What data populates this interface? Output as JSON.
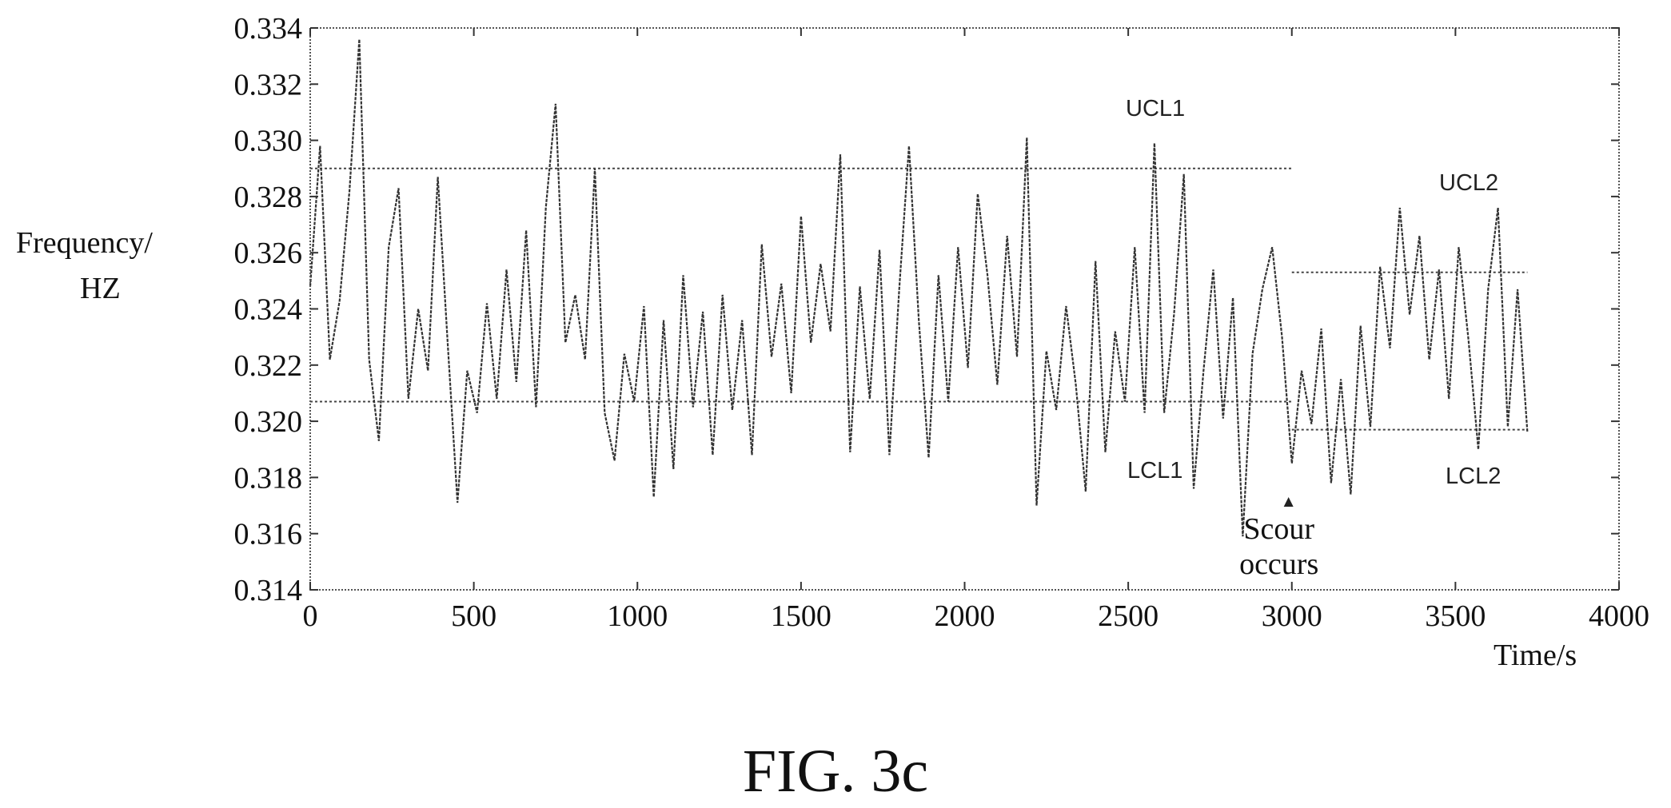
{
  "figure_label": "FIG. 3c",
  "chart_data": {
    "type": "line",
    "ylabel": [
      "Frequency/",
      "HZ"
    ],
    "xlabel": "Time/s",
    "xlim": [
      0,
      4000
    ],
    "ylim": [
      0.314,
      0.334
    ],
    "xticks": [
      0,
      500,
      1000,
      1500,
      2000,
      2500,
      3000,
      3500,
      4000
    ],
    "xtick_labels": [
      "0",
      "500",
      "1000",
      "1500",
      "2000",
      "2500",
      "3000",
      "3500",
      "4000"
    ],
    "yticks": [
      0.314,
      0.316,
      0.318,
      0.32,
      0.322,
      0.324,
      0.326,
      0.328,
      0.33,
      0.332,
      0.334
    ],
    "ytick_labels": [
      "0.314",
      "0.316",
      "0.318",
      "0.320",
      "0.322",
      "0.324",
      "0.326",
      "0.328",
      "0.330",
      "0.332",
      "0.334"
    ],
    "grid": false,
    "series": [
      {
        "x": [
          0,
          30,
          60,
          90,
          120,
          150,
          180,
          210,
          240,
          270,
          300,
          330,
          360,
          390,
          420,
          450,
          480,
          510,
          540,
          570,
          600,
          630,
          660,
          690,
          720,
          750,
          780,
          810,
          840,
          870,
          900,
          930,
          960,
          990,
          1020,
          1050,
          1080,
          1110,
          1140,
          1170,
          1200,
          1230,
          1260,
          1290,
          1320,
          1350,
          1380,
          1410,
          1440,
          1470,
          1500,
          1530,
          1560,
          1590,
          1620,
          1650,
          1680,
          1710,
          1740,
          1770,
          1800,
          1830,
          1860,
          1890,
          1920,
          1950,
          1980,
          2010,
          2040,
          2070,
          2100,
          2130,
          2160,
          2190,
          2220,
          2250,
          2280,
          2310,
          2340,
          2370,
          2400,
          2430,
          2460,
          2490,
          2520,
          2550,
          2580,
          2610,
          2640,
          2670,
          2700,
          2730,
          2760,
          2790,
          2820,
          2850,
          2880,
          2910,
          2940,
          2970,
          3000,
          3030,
          3060,
          3090,
          3120,
          3150,
          3180,
          3210,
          3240,
          3270,
          3300,
          3330,
          3360,
          3390,
          3420,
          3450,
          3480,
          3510,
          3540,
          3570,
          3600,
          3630,
          3660,
          3690,
          3720
        ],
        "y": [
          0.3248,
          0.3298,
          0.3222,
          0.3243,
          0.3282,
          0.3336,
          0.3222,
          0.3193,
          0.3262,
          0.3283,
          0.3208,
          0.324,
          0.3218,
          0.3287,
          0.3228,
          0.3171,
          0.3218,
          0.3203,
          0.3242,
          0.3208,
          0.3254,
          0.3214,
          0.3268,
          0.3205,
          0.3276,
          0.3313,
          0.3228,
          0.3245,
          0.3222,
          0.329,
          0.3203,
          0.3186,
          0.3224,
          0.3207,
          0.3241,
          0.3173,
          0.3236,
          0.3183,
          0.3252,
          0.3205,
          0.3239,
          0.3188,
          0.3245,
          0.3204,
          0.3236,
          0.3188,
          0.3263,
          0.3223,
          0.3249,
          0.321,
          0.3273,
          0.3228,
          0.3256,
          0.3232,
          0.3295,
          0.3189,
          0.3248,
          0.3208,
          0.3261,
          0.3188,
          0.3247,
          0.3298,
          0.3236,
          0.3187,
          0.3252,
          0.3207,
          0.3262,
          0.3219,
          0.3281,
          0.3252,
          0.3213,
          0.3266,
          0.3223,
          0.3301,
          0.317,
          0.3225,
          0.3204,
          0.3241,
          0.3213,
          0.3175,
          0.3257,
          0.3189,
          0.3232,
          0.3207,
          0.3262,
          0.3203,
          0.3299,
          0.3203,
          0.3238,
          0.3288,
          0.3176,
          0.3218,
          0.3254,
          0.3201,
          0.3244,
          0.3159,
          0.3224,
          0.3247,
          0.3262,
          0.323,
          0.3185,
          0.3218,
          0.3199,
          0.3233,
          0.3178,
          0.3215,
          0.3174,
          0.3234,
          0.3198,
          0.3255,
          0.3226,
          0.3276,
          0.3238,
          0.3266,
          0.3222,
          0.3254,
          0.3208,
          0.3262,
          0.3229,
          0.319,
          0.3247,
          0.3276,
          0.3198,
          0.3247,
          0.3196
        ]
      }
    ],
    "control_limits": [
      {
        "name": "UCL1",
        "value": 0.329,
        "x_range": [
          0,
          3000
        ]
      },
      {
        "name": "LCL1",
        "value": 0.3207,
        "x_range": [
          0,
          3000
        ]
      },
      {
        "name": "UCL2",
        "value": 0.3253,
        "x_range": [
          3000,
          3720
        ]
      },
      {
        "name": "LCL2",
        "value": 0.3197,
        "x_range": [
          3000,
          3720
        ]
      }
    ],
    "annotations": [
      {
        "text": [
          "Scour",
          "occurs"
        ],
        "x": 2990,
        "y": 0.3173
      }
    ]
  }
}
